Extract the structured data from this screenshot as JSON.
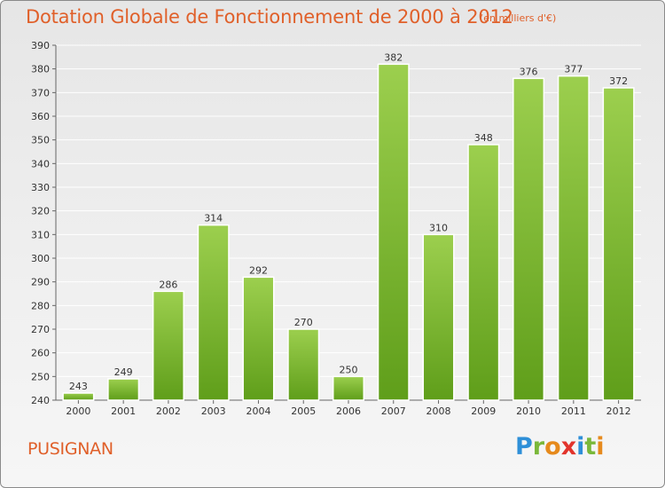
{
  "header": {
    "title": "Dotation Globale de Fonctionnement de 2000 à 2012",
    "subtitle": "(en milliers d'€)"
  },
  "footer": {
    "commune": "PUSIGNAN",
    "logo_letters": [
      "P",
      "r",
      "o",
      "x",
      "i",
      "t",
      "i"
    ],
    "logo_colors": [
      "#2e8fd8",
      "#7ab83a",
      "#e68a1c",
      "#e2342c",
      "#2e8fd8",
      "#7ab83a",
      "#e68a1c"
    ]
  },
  "colors": {
    "bar_top": "#9ccf4e",
    "bar_bottom": "#5f9e1a",
    "grid": "#ffffff",
    "axis": "#666666"
  },
  "chart_data": {
    "type": "bar",
    "categories": [
      "2000",
      "2001",
      "2002",
      "2003",
      "2004",
      "2005",
      "2006",
      "2007",
      "2008",
      "2009",
      "2010",
      "2011",
      "2012"
    ],
    "values": [
      243,
      249,
      286,
      314,
      292,
      270,
      250,
      382,
      310,
      348,
      376,
      377,
      372
    ],
    "data_labels": [
      "243",
      "249",
      "286",
      "314",
      "292",
      "270",
      "250",
      "382",
      "310",
      "348",
      "376",
      "377",
      "372"
    ],
    "title": "Dotation Globale de Fonctionnement de 2000 à 2012",
    "ylabel": "",
    "xlabel": "",
    "ylim": [
      240,
      390
    ],
    "yticks": [
      240,
      250,
      260,
      270,
      280,
      290,
      300,
      310,
      320,
      330,
      340,
      350,
      360,
      370,
      380,
      390
    ],
    "grid": true,
    "legend": "none"
  }
}
